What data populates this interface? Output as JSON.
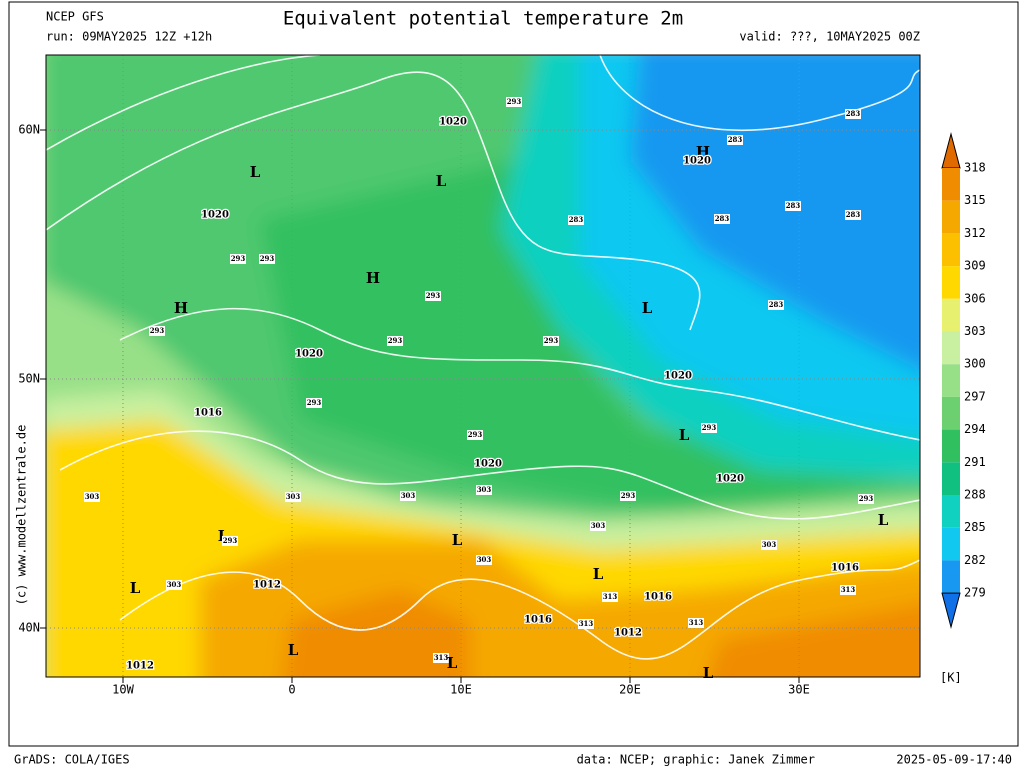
{
  "header": {
    "model": "NCEP GFS",
    "run": "run: 09MAY2025 12Z +12h",
    "title": "Equivalent potential temperature 2m",
    "valid": "valid: ???, 10MAY2025 00Z"
  },
  "axes": {
    "lat_labels": [
      "60N",
      "50N",
      "40N"
    ],
    "lon_labels": [
      "10W",
      "0",
      "10E",
      "20E",
      "30E"
    ]
  },
  "colorbar": {
    "labels": [
      318,
      315,
      312,
      309,
      306,
      303,
      300,
      297,
      294,
      291,
      288,
      285,
      282,
      279
    ],
    "unit": "[K]",
    "colors": [
      "#e06a00",
      "#f08c00",
      "#f5a800",
      "#fcc000",
      "#ffd800",
      "#e8f070",
      "#c8f0a0",
      "#98e088",
      "#6cd070",
      "#30c060",
      "#10c080",
      "#10d0c0",
      "#10c8f0",
      "#1898f0",
      "#1070e8"
    ]
  },
  "copyright": "(c) www.modellzentrale.de",
  "map_labels": [
    "L",
    "1020",
    "293",
    "L",
    "H",
    "1020",
    "283",
    "283",
    "1020",
    "283",
    "283",
    "283",
    "283",
    "293",
    "293",
    "H",
    "293",
    "L",
    "283",
    "H",
    "293",
    "1020",
    "293",
    "293",
    "1020",
    "1016",
    "293",
    "L",
    "293",
    "293",
    "1020",
    "1020",
    "303",
    "303",
    "303",
    "303",
    "293",
    "293",
    "L",
    "303",
    "L",
    "293",
    "L",
    "303",
    "303",
    "L",
    "1016",
    "1012",
    "303",
    "L",
    "313",
    "1016",
    "313",
    "1016",
    "313",
    "313",
    "1012",
    "L",
    "313",
    "L",
    "1012",
    "L"
  ],
  "footer": {
    "left": "GrADS: COLA/IGES",
    "middle": "data: NCEP; graphic: Janek Zimmer",
    "right": "2025-05-09-17:40"
  }
}
